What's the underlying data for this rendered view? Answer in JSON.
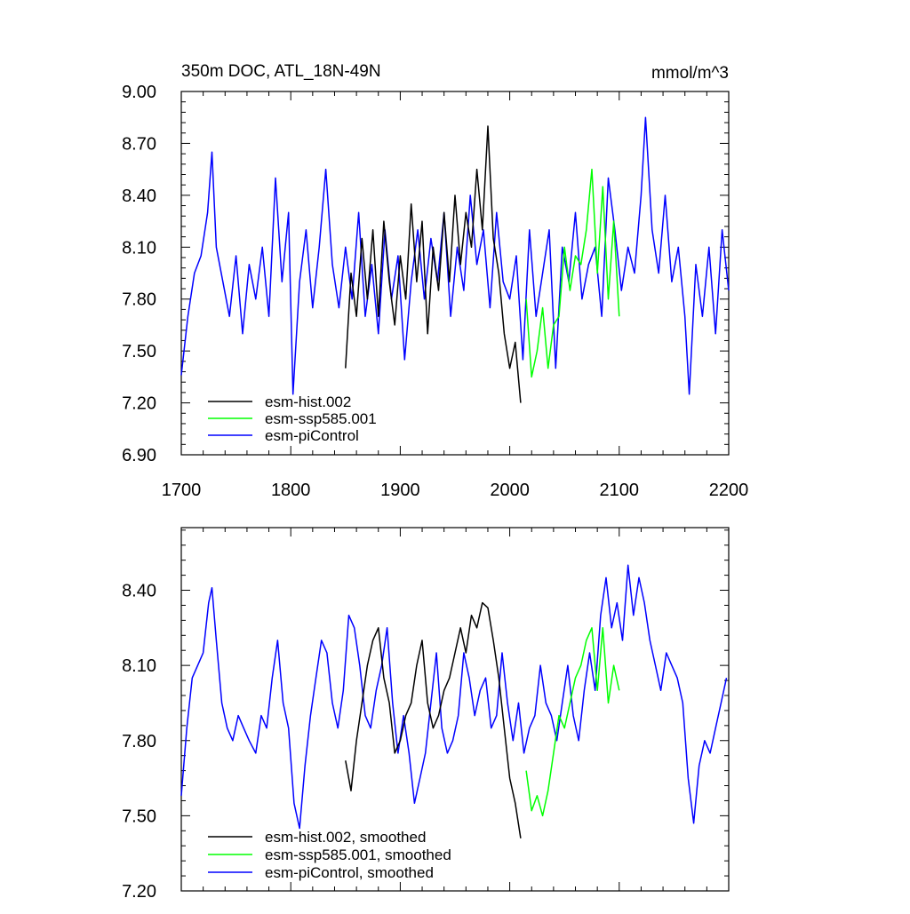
{
  "chart_data": [
    {
      "type": "line",
      "title": "350m DOC, ATL_18N-49N",
      "units": "mmol/m^3",
      "xlim": [
        1700,
        2200
      ],
      "ylim": [
        6.9,
        9.0
      ],
      "x_ticks": [
        1700,
        1800,
        1900,
        2000,
        2100,
        2200
      ],
      "x_tick_labels": [
        "1700",
        "1800",
        "1900",
        "2000",
        "2100",
        "2200"
      ],
      "y_ticks": [
        6.9,
        7.2,
        7.5,
        7.8,
        8.1,
        8.4,
        8.7,
        9.0
      ],
      "y_tick_labels": [
        "6.90",
        "7.20",
        "7.50",
        "7.80",
        "8.10",
        "8.40",
        "8.70",
        "9.00"
      ],
      "legend_position": "bottom-left",
      "series": [
        {
          "name": "esm-piControl",
          "color": "#0000ff",
          "x": [
            1700,
            1706,
            1712,
            1718,
            1724,
            1728,
            1732,
            1738,
            1744,
            1750,
            1756,
            1762,
            1768,
            1774,
            1780,
            1786,
            1792,
            1798,
            1802,
            1808,
            1814,
            1820,
            1826,
            1832,
            1838,
            1844,
            1850,
            1856,
            1862,
            1868,
            1874,
            1880,
            1886,
            1892,
            1898,
            1904,
            1910,
            1916,
            1922,
            1928,
            1934,
            1940,
            1946,
            1952,
            1958,
            1964,
            1970,
            1976,
            1982,
            1988,
            1994,
            2000,
            2006,
            2012,
            2018,
            2024,
            2030,
            2036,
            2042,
            2048,
            2054,
            2060,
            2066,
            2072,
            2078,
            2084,
            2090,
            2096,
            2102,
            2108,
            2114,
            2120,
            2124,
            2130,
            2136,
            2142,
            2148,
            2154,
            2160,
            2164,
            2170,
            2176,
            2182,
            2188,
            2194,
            2200
          ],
          "values": [
            7.36,
            7.7,
            7.95,
            8.05,
            8.3,
            8.65,
            8.1,
            7.9,
            7.7,
            8.05,
            7.6,
            8.0,
            7.8,
            8.1,
            7.7,
            8.5,
            7.9,
            8.3,
            7.25,
            7.9,
            8.2,
            7.75,
            8.1,
            8.55,
            8.0,
            7.75,
            8.1,
            7.8,
            8.3,
            7.7,
            8.0,
            7.6,
            8.2,
            7.8,
            8.05,
            7.45,
            7.9,
            8.2,
            7.8,
            8.15,
            7.9,
            8.3,
            7.7,
            8.1,
            7.85,
            8.4,
            8.0,
            8.2,
            7.75,
            8.3,
            7.9,
            7.8,
            8.05,
            7.45,
            8.2,
            7.7,
            7.95,
            8.2,
            7.4,
            8.1,
            7.9,
            8.3,
            7.8,
            8.0,
            8.1,
            7.7,
            8.5,
            8.2,
            7.85,
            8.1,
            7.95,
            8.4,
            8.85,
            8.2,
            7.95,
            8.4,
            7.9,
            8.1,
            7.7,
            7.25,
            8.0,
            7.7,
            8.1,
            7.6,
            8.2,
            7.85
          ]
        },
        {
          "name": "esm-hist.002",
          "color": "#000000",
          "x": [
            1850,
            1855,
            1860,
            1865,
            1870,
            1875,
            1880,
            1885,
            1890,
            1895,
            1900,
            1905,
            1910,
            1915,
            1920,
            1925,
            1930,
            1935,
            1940,
            1945,
            1950,
            1955,
            1960,
            1965,
            1970,
            1975,
            1980,
            1985,
            1990,
            1995,
            2000,
            2005,
            2010
          ],
          "values": [
            7.4,
            7.95,
            7.7,
            8.15,
            7.8,
            8.2,
            7.7,
            8.25,
            7.9,
            7.65,
            8.05,
            7.8,
            8.35,
            7.9,
            8.25,
            7.6,
            8.1,
            7.85,
            8.3,
            7.9,
            8.4,
            8.0,
            8.3,
            8.1,
            8.55,
            8.2,
            8.8,
            8.15,
            7.95,
            7.6,
            7.4,
            7.55,
            7.2
          ]
        },
        {
          "name": "esm-ssp585.001",
          "color": "#00ff00",
          "x": [
            2015,
            2020,
            2025,
            2030,
            2035,
            2040,
            2045,
            2050,
            2055,
            2060,
            2065,
            2070,
            2075,
            2080,
            2085,
            2090,
            2095,
            2100
          ],
          "values": [
            7.8,
            7.35,
            7.5,
            7.75,
            7.4,
            7.65,
            7.7,
            8.1,
            7.85,
            8.05,
            8.0,
            8.2,
            8.55,
            7.95,
            8.45,
            7.8,
            8.25,
            7.7
          ]
        }
      ]
    },
    {
      "type": "line",
      "xlim": [
        1700,
        2200
      ],
      "ylim": [
        7.2,
        8.65
      ],
      "y_ticks": [
        7.2,
        7.5,
        7.8,
        8.1,
        8.4
      ],
      "y_tick_labels": [
        "7.20",
        "7.50",
        "7.80",
        "8.10",
        "8.40"
      ],
      "legend_position": "bottom-left",
      "series": [
        {
          "name": "esm-piControl, smoothed",
          "color": "#0000ff",
          "x": [
            1700,
            1705,
            1710,
            1715,
            1720,
            1725,
            1728,
            1732,
            1737,
            1742,
            1747,
            1752,
            1757,
            1762,
            1768,
            1773,
            1778,
            1783,
            1788,
            1793,
            1798,
            1803,
            1808,
            1813,
            1818,
            1823,
            1828,
            1833,
            1838,
            1843,
            1848,
            1853,
            1858,
            1863,
            1868,
            1873,
            1878,
            1883,
            1888,
            1893,
            1898,
            1903,
            1908,
            1913,
            1918,
            1923,
            1928,
            1933,
            1938,
            1943,
            1948,
            1953,
            1958,
            1963,
            1968,
            1973,
            1978,
            1983,
            1988,
            1993,
            1998,
            2003,
            2008,
            2013,
            2018,
            2023,
            2028,
            2033,
            2038,
            2043,
            2048,
            2053,
            2058,
            2063,
            2068,
            2073,
            2078,
            2083,
            2088,
            2093,
            2098,
            2103,
            2108,
            2113,
            2118,
            2123,
            2128,
            2133,
            2138,
            2143,
            2148,
            2153,
            2158,
            2163,
            2168,
            2173,
            2178,
            2183,
            2188,
            2193,
            2198
          ],
          "values": [
            7.58,
            7.85,
            8.05,
            8.1,
            8.15,
            8.35,
            8.41,
            8.2,
            7.95,
            7.85,
            7.8,
            7.9,
            7.85,
            7.8,
            7.75,
            7.9,
            7.85,
            8.05,
            8.2,
            7.95,
            7.85,
            7.55,
            7.45,
            7.7,
            7.9,
            8.05,
            8.2,
            8.15,
            7.95,
            7.85,
            8.0,
            8.3,
            8.25,
            8.1,
            7.9,
            7.85,
            8.0,
            8.1,
            8.25,
            7.95,
            7.75,
            7.9,
            7.75,
            7.55,
            7.65,
            7.75,
            7.95,
            8.15,
            7.85,
            7.75,
            7.8,
            7.9,
            8.15,
            8.05,
            7.9,
            8.0,
            8.05,
            7.85,
            7.9,
            8.15,
            7.95,
            7.8,
            7.95,
            7.75,
            7.85,
            7.9,
            8.1,
            7.95,
            7.9,
            7.8,
            7.95,
            8.1,
            7.9,
            7.8,
            8.0,
            8.15,
            8.0,
            8.3,
            8.45,
            8.25,
            8.35,
            8.2,
            8.5,
            8.3,
            8.45,
            8.35,
            8.2,
            8.1,
            8.0,
            8.15,
            8.1,
            8.05,
            7.95,
            7.65,
            7.47,
            7.7,
            7.8,
            7.75,
            7.85,
            7.95,
            8.05
          ]
        },
        {
          "name": "esm-hist.002, smoothed",
          "color": "#000000",
          "x": [
            1850,
            1855,
            1860,
            1865,
            1870,
            1875,
            1880,
            1885,
            1890,
            1895,
            1900,
            1905,
            1910,
            1915,
            1920,
            1925,
            1930,
            1935,
            1940,
            1945,
            1950,
            1955,
            1960,
            1965,
            1970,
            1975,
            1980,
            1985,
            1990,
            1995,
            2000,
            2005,
            2010
          ],
          "values": [
            7.72,
            7.6,
            7.8,
            7.95,
            8.1,
            8.2,
            8.25,
            8.05,
            7.95,
            7.75,
            7.8,
            7.9,
            7.95,
            8.1,
            8.2,
            7.95,
            7.85,
            7.9,
            8.0,
            8.05,
            8.15,
            8.25,
            8.15,
            8.3,
            8.25,
            8.35,
            8.33,
            8.2,
            8.05,
            7.85,
            7.65,
            7.55,
            7.41
          ]
        },
        {
          "name": "esm-ssp585.001, smoothed",
          "color": "#00ff00",
          "x": [
            2015,
            2020,
            2025,
            2030,
            2035,
            2040,
            2045,
            2050,
            2055,
            2060,
            2065,
            2070,
            2075,
            2080,
            2085,
            2090,
            2095,
            2100
          ],
          "values": [
            7.68,
            7.52,
            7.58,
            7.5,
            7.6,
            7.75,
            7.9,
            7.85,
            7.95,
            8.05,
            8.1,
            8.2,
            8.25,
            8.0,
            8.25,
            7.95,
            8.1,
            8.0
          ]
        }
      ]
    }
  ]
}
